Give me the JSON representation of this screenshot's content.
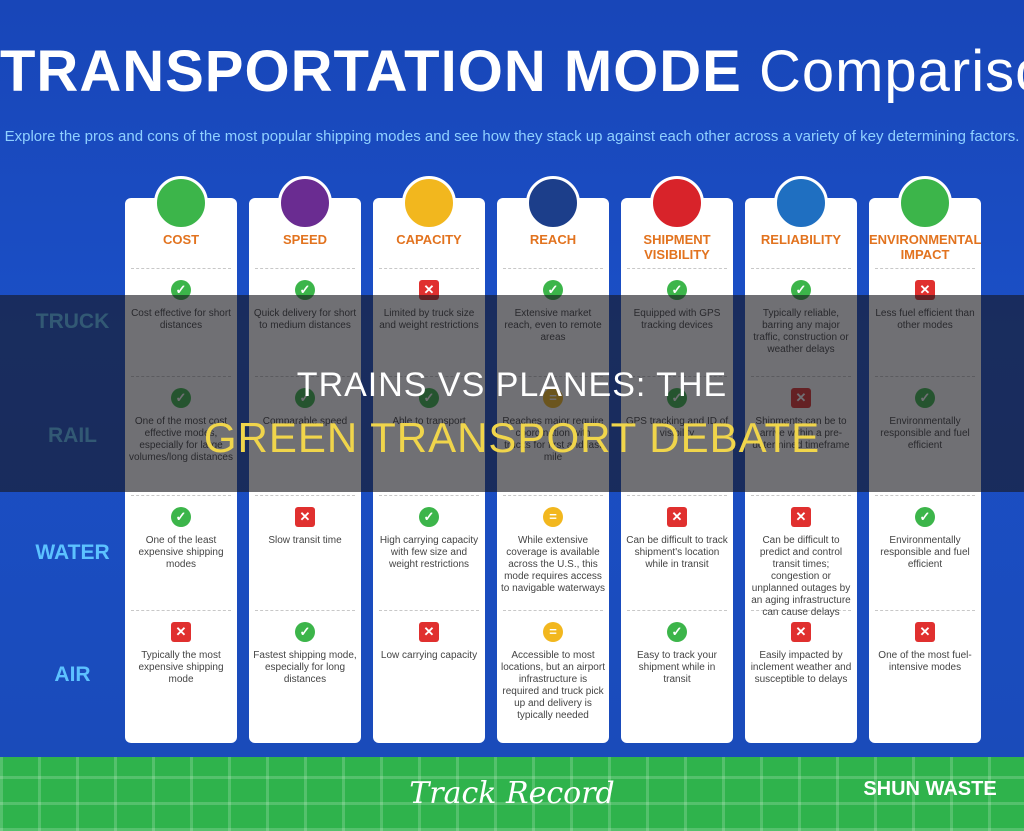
{
  "header": {
    "title": "TRANSPORTATION MODE",
    "title_light": "Comparison",
    "subtitle": "Explore the pros and cons of the most popular shipping modes and see how they stack up against each other across a variety of key determining factors."
  },
  "table": {
    "columns": [
      "COST",
      "SPEED",
      "CAPACITY",
      "REACH",
      "SHIPMENT VISIBILITY",
      "RELIABILITY",
      "ENVIRONMENTAL IMPACT"
    ],
    "row_labels": [
      "TRUCK",
      "RAIL",
      "WATER",
      "AIR"
    ],
    "rows": [
      [
        "Cost effective for short distances",
        "Quick delivery for short to medium distances",
        "Limited by truck size and weight restrictions",
        "Extensive market reach, even to remote areas",
        "Equipped with GPS tracking devices",
        "Typically reliable, barring any major traffic, construction or weather delays",
        "Less fuel efficient than other modes"
      ],
      [
        "One of the most cost effective modes, especially for large volumes/long distances",
        "Comparable speed",
        "Able to transport",
        "Reaches major require coordination with trucks for first and last mile",
        "GPS tracking and ID of visibility",
        "Shipments can be to arrive within a pre-determined timeframe",
        "Environmentally responsible and fuel efficient"
      ],
      [
        "One of the least expensive shipping modes",
        "Slow transit time",
        "High carrying capacity with few size and weight restrictions",
        "While extensive coverage is available across the U.S., this mode requires access to navigable waterways",
        "Can be difficult to track shipment's location while in transit",
        "Can be difficult to predict and control transit times; congestion or unplanned outages by an aging infrastructure can cause delays",
        "Environmentally responsible and fuel efficient"
      ],
      [
        "Typically the most expensive shipping mode",
        "Fastest shipping mode, especially for long distances",
        "Low carrying capacity",
        "Accessible to most locations, but an airport infrastructure is required and truck pick up and delivery is typically needed",
        "Easy to track your shipment while in transit",
        "Easily impacted by inclement weather and susceptible to delays",
        "One of the most fuel-intensive modes"
      ]
    ]
  },
  "overlay": {
    "line1": "TRAINS VS PLANES: THE",
    "line2": "GREEN TRANSPORT DEBATE"
  },
  "footer": {
    "brand": "Track Record",
    "site": "SHUN WASTE"
  }
}
